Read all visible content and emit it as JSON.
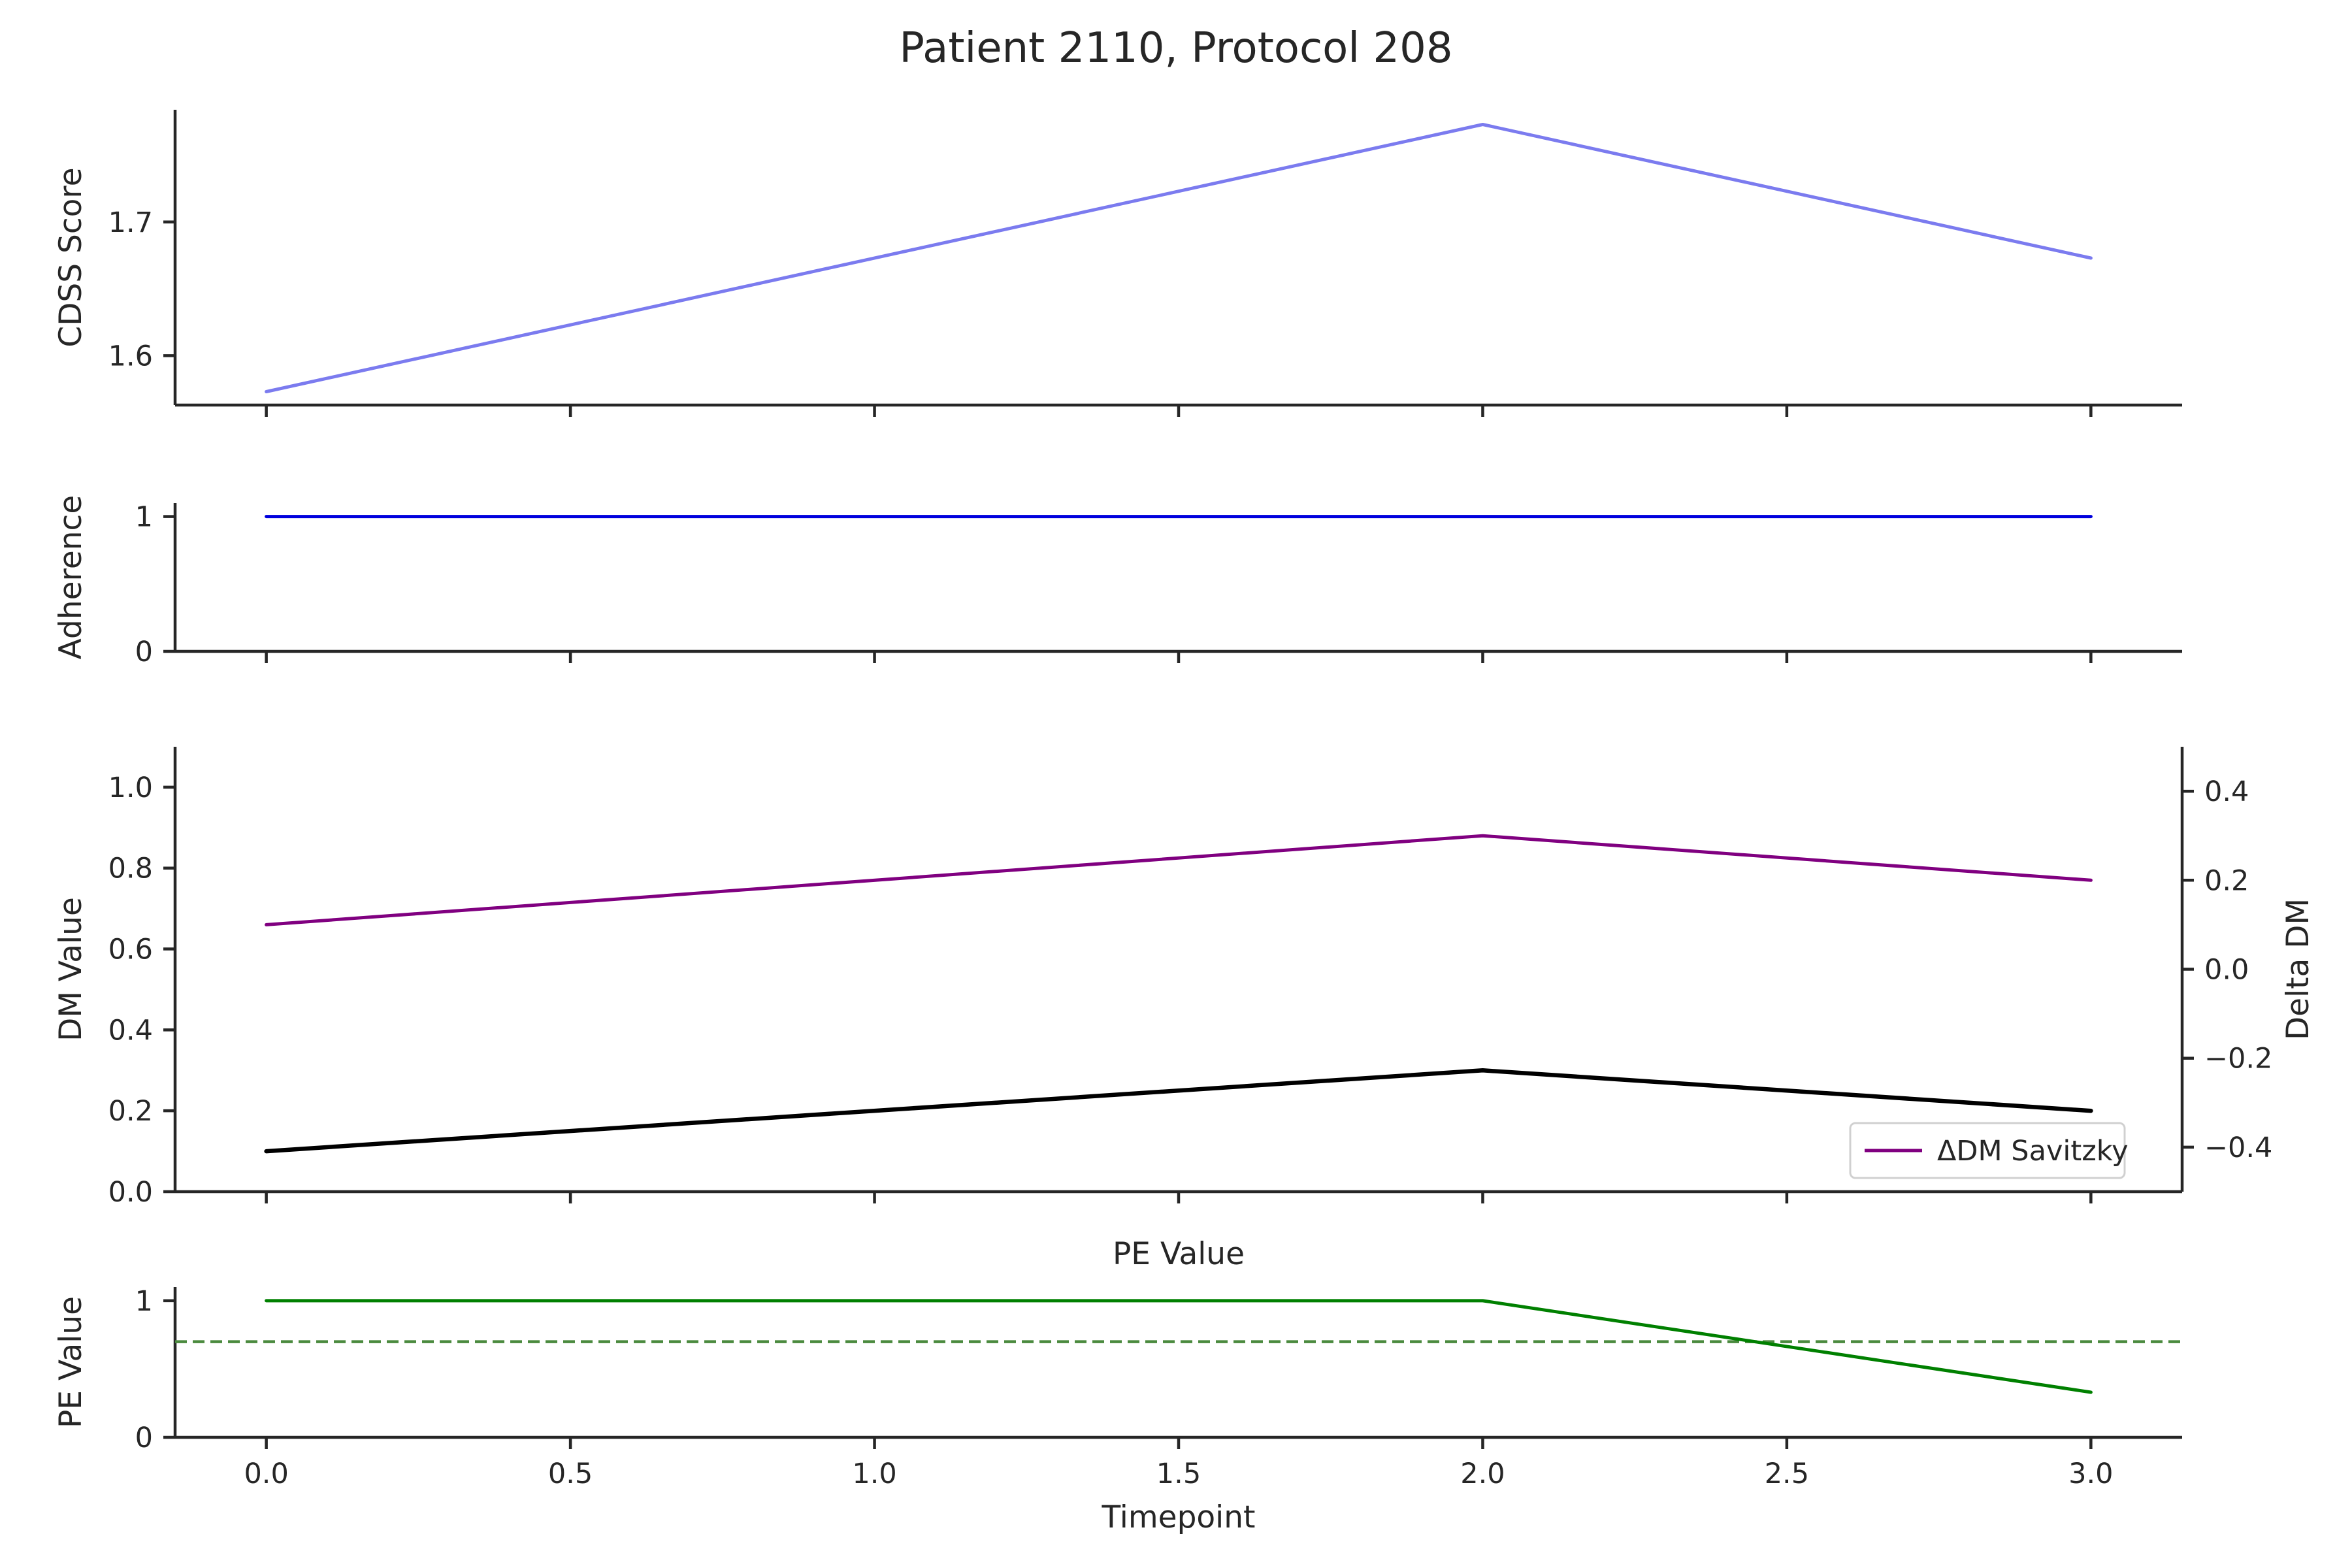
{
  "chart_data": {
    "title": "Patient 2110, Protocol 208",
    "xlabel": "Timepoint",
    "xlim": [
      -0.15,
      3.15
    ],
    "xticks": [
      0.0,
      0.5,
      1.0,
      1.5,
      2.0,
      2.5,
      3.0
    ],
    "xtick_labels": [
      "0.0",
      "0.5",
      "1.0",
      "1.5",
      "2.0",
      "2.5",
      "3.0"
    ],
    "panels": [
      {
        "type": "line",
        "ylabel": "CDSS Score",
        "ylim": [
          1.563,
          1.784
        ],
        "yticks": [
          1.6,
          1.7
        ],
        "ytick_labels": [
          "1.6",
          "1.7"
        ],
        "series": [
          {
            "x": [
              0,
              2,
              3
            ],
            "y": [
              1.573,
              1.773,
              1.673
            ],
            "color": "#7b7bef"
          }
        ]
      },
      {
        "type": "line",
        "ylabel": "Adherence",
        "ylim": [
          0,
          1.1
        ],
        "yticks": [
          0,
          1
        ],
        "ytick_labels": [
          "0",
          "1"
        ],
        "series": [
          {
            "x": [
              0,
              1,
              2,
              3
            ],
            "y": [
              1,
              1,
              1,
              1
            ],
            "color": "#0000dd"
          }
        ]
      },
      {
        "type": "line",
        "ylabel": "DM Value",
        "ylim": [
          0,
          1.1
        ],
        "yticks": [
          0.0,
          0.2,
          0.4,
          0.6,
          0.8,
          1.0
        ],
        "ytick_labels": [
          "0.0",
          "0.2",
          "0.4",
          "0.6",
          "0.8",
          "1.0"
        ],
        "y2label": "Delta DM",
        "y2lim": [
          -0.5,
          0.5
        ],
        "y2ticks": [
          -0.4,
          -0.2,
          0.0,
          0.2,
          0.4
        ],
        "y2tick_labels": [
          "−0.4",
          "−0.2",
          "0.0",
          "0.2",
          "0.4"
        ],
        "series": [
          {
            "x": [
              0,
              2,
              3
            ],
            "y": [
              0.1,
              0.3,
              0.2
            ],
            "color": "#000000",
            "axis": "left"
          },
          {
            "name": "ΔDM Savitzky",
            "x": [
              0,
              2,
              3
            ],
            "y": [
              0.1,
              0.3,
              0.2
            ],
            "color": "#800080",
            "axis": "right"
          }
        ],
        "legend": "lower-right"
      },
      {
        "type": "line",
        "title": "PE Value",
        "ylabel": "PE Value",
        "ylim": [
          0,
          1.1
        ],
        "yticks": [
          0,
          1
        ],
        "ytick_labels": [
          "0",
          "1"
        ],
        "series": [
          {
            "x": [
              0,
              2,
              3
            ],
            "y": [
              1.0,
              1.0,
              0.33
            ],
            "color": "#008000"
          }
        ],
        "hline": {
          "y": 0.7,
          "color": "#4a8a3e",
          "style": "dashed"
        }
      }
    ]
  }
}
